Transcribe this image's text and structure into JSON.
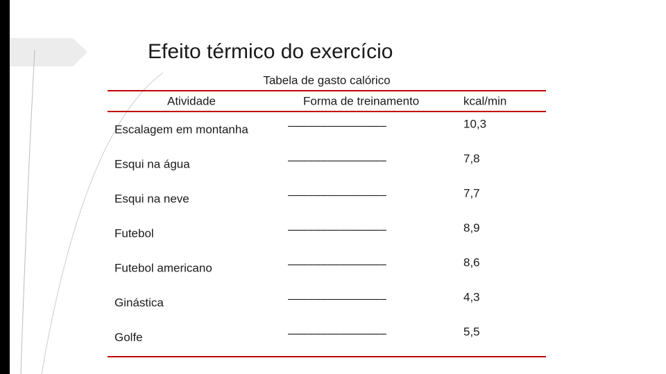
{
  "title": "Efeito térmico do exercício",
  "table": {
    "caption": "Tabela de gasto calórico",
    "header": [
      "Atividade",
      "Forma de treinamento",
      "kcal/min"
    ],
    "rows": [
      [
        "Escalagem em montanha",
        "–––––––––––––––",
        "10,3"
      ],
      [
        "Esqui na água",
        "–––––––––––––––",
        "7,8"
      ],
      [
        "Esqui na neve",
        "–––––––––––––––",
        "7,7"
      ],
      [
        "Futebol",
        "–––––––––––––––",
        "8,9"
      ],
      [
        "Futebol americano",
        "–––––––––––––––",
        "8,6"
      ],
      [
        "Ginástica",
        "–––––––––––––––",
        "4,3"
      ],
      [
        "Golfe",
        "–––––––––––––––",
        "5,5"
      ]
    ]
  }
}
